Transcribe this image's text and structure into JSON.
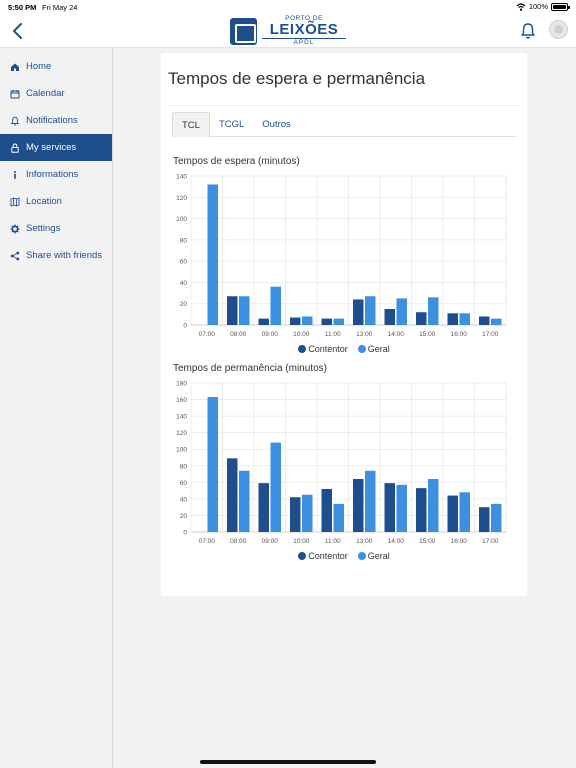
{
  "status_bar": {
    "time": "5:50 PM",
    "date": "Fri May 24",
    "battery": "100%"
  },
  "header": {
    "logo": {
      "line1": "PORTO DE",
      "line2": "LEIXÕES",
      "line3": "APDL"
    }
  },
  "sidebar": {
    "items": [
      {
        "label": "Home",
        "icon": "home-icon",
        "active": false
      },
      {
        "label": "Calendar",
        "icon": "calendar-icon",
        "active": false
      },
      {
        "label": "Notifications",
        "icon": "bell-icon",
        "active": false
      },
      {
        "label": "My services",
        "icon": "lock-icon",
        "active": true
      },
      {
        "label": "Informations",
        "icon": "info-icon",
        "active": false
      },
      {
        "label": "Location",
        "icon": "map-icon",
        "active": false
      },
      {
        "label": "Settings",
        "icon": "gear-icon",
        "active": false
      },
      {
        "label": "Share with friends",
        "icon": "share-icon",
        "active": false
      }
    ]
  },
  "main": {
    "title": "Tempos de espera e permanência",
    "tabs": [
      {
        "label": "TCL",
        "active": true
      },
      {
        "label": "TCGL",
        "active": false
      },
      {
        "label": "Outros",
        "active": false
      }
    ]
  },
  "colors": {
    "contentor": "#1f4e8c",
    "geral": "#3d8fe0",
    "accent": "#1f4e8c"
  },
  "chart_data": [
    {
      "type": "bar",
      "title": "Tempos de espera (minutos)",
      "categories": [
        "07:00",
        "08:00",
        "09:00",
        "10:00",
        "11:00",
        "13:00",
        "14:00",
        "15:00",
        "16:00",
        "17:00"
      ],
      "ylim": [
        0,
        140
      ],
      "yticks": [
        0,
        20,
        40,
        60,
        80,
        100,
        120,
        140
      ],
      "grid": true,
      "legend": "bottom-center",
      "series": [
        {
          "name": "Contentor",
          "values": [
            0,
            27,
            6,
            7,
            6,
            24,
            15,
            12,
            11,
            8
          ]
        },
        {
          "name": "Geral",
          "values": [
            132,
            27,
            36,
            8,
            6,
            27,
            25,
            26,
            11,
            6
          ]
        }
      ]
    },
    {
      "type": "bar",
      "title": "Tempos de permanência (minutos)",
      "categories": [
        "07:00",
        "08:00",
        "09:00",
        "10:00",
        "11:00",
        "13:00",
        "14:00",
        "15:00",
        "16:00",
        "17:00"
      ],
      "ylim": [
        0,
        180
      ],
      "yticks": [
        0,
        20,
        40,
        60,
        80,
        100,
        120,
        140,
        160,
        180
      ],
      "grid": true,
      "legend": "bottom-center",
      "series": [
        {
          "name": "Contentor",
          "values": [
            0,
            89,
            59,
            42,
            52,
            64,
            59,
            53,
            44,
            30
          ]
        },
        {
          "name": "Geral",
          "values": [
            163,
            74,
            108,
            45,
            34,
            74,
            57,
            64,
            48,
            34
          ]
        }
      ]
    }
  ]
}
